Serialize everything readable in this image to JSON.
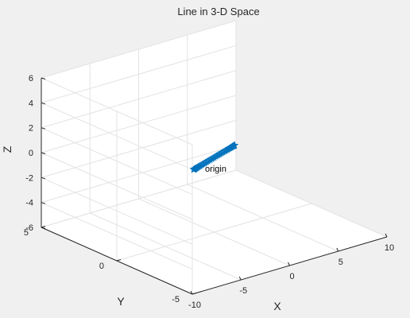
{
  "chart_data": {
    "type": "line3d",
    "title": "Line in 3-D Space",
    "xlabel": "X",
    "ylabel": "Y",
    "zlabel": "Z",
    "xlim": [
      -10,
      10
    ],
    "ylim": [
      -5,
      5
    ],
    "zlim": [
      -6,
      6
    ],
    "xticks": [
      -10,
      -5,
      0,
      5,
      10
    ],
    "yticks": [
      -5,
      0,
      5
    ],
    "zticks": [
      -6,
      -4,
      -2,
      0,
      2,
      4,
      6
    ],
    "view": {
      "azimuth": -37.5,
      "elevation": 30
    },
    "grid": true,
    "marker": "pentagram",
    "line_color": "#0072bd",
    "series": [
      {
        "curve": "ellipse",
        "points": 100,
        "x_amplitude": 9.4,
        "y_amplitude": 4.7,
        "z_amplitude": 3.7,
        "phase_degrees": [
          0,
          0,
          180
        ]
      }
    ],
    "annotations": [
      {
        "text": "origin",
        "x": 0,
        "y": 0,
        "z": 0
      }
    ]
  }
}
